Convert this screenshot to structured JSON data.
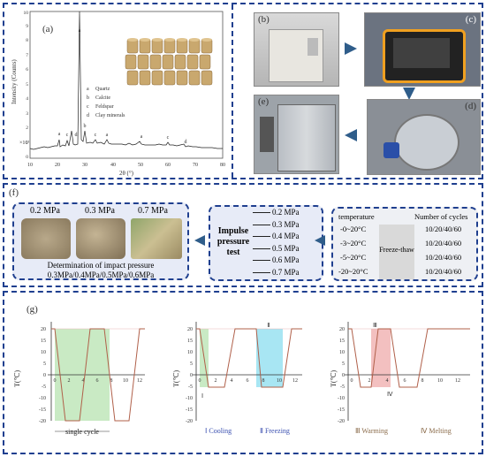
{
  "panel_a": {
    "label": "(a)",
    "y_axis_label": "Intensity (Counts)",
    "x_axis_label": "2θ (°)",
    "y_multiplier": "×10³",
    "y_ticks": [
      "0",
      "1",
      "2",
      "3",
      "4",
      "5",
      "6",
      "7",
      "8",
      "9",
      "10"
    ],
    "x_ticks": [
      "10",
      "20",
      "30",
      "40",
      "50",
      "60",
      "70",
      "80"
    ],
    "legend": [
      {
        "key": "a",
        "name": "Quartz"
      },
      {
        "key": "b",
        "name": "Calcite"
      },
      {
        "key": "c",
        "name": "Feldspar"
      },
      {
        "key": "d",
        "name": "Clay minerals"
      }
    ],
    "peak_labels": [
      "a",
      "a",
      "c",
      "d",
      "b",
      "c",
      "a",
      "c",
      "a",
      "d"
    ]
  },
  "panel_b_label": "(b)",
  "panel_c_label": "(c)",
  "panel_d_label": "(d)",
  "panel_e_label": "(e)",
  "panel_f": {
    "label": "(f)",
    "pressures_shown": [
      "0.2 MPa",
      "0.3 MPa",
      "0.7 MPa"
    ],
    "caption_line1": "Determination of impact pressure",
    "caption_line2": "0.3MPa/0.4MPa/0.5MPa/0.6MPa",
    "test_label_line1": "Impulse",
    "test_label_line2": "pressure",
    "test_label_line3": "test",
    "test_pressures": [
      "0.2 MPa",
      "0.3 MPa",
      "0.4 MPa",
      "0.5 MPa",
      "0.6 MPa",
      "0.7 MPa"
    ],
    "table_header_temp": "temperature",
    "table_header_cycles": "Number of cycles",
    "temps": [
      "-0~20°C",
      "-3~20°C",
      "-5~20°C",
      "-20~20°C"
    ],
    "middle_label": "Freeze-thaw",
    "cycles": [
      "10/20/40/60",
      "10/20/40/60",
      "10/20/40/60",
      "10/20/40/60"
    ]
  },
  "panel_g": {
    "label": "(g)",
    "y_label": "T(℃)",
    "y_ticks": [
      "20",
      "15",
      "10",
      "5",
      "0",
      "-5",
      "-10",
      "-15",
      "-20"
    ],
    "x_ticks": [
      "0",
      "2",
      "4",
      "6",
      "8",
      "10",
      "12"
    ],
    "single_cycle": "single cycle",
    "cooling": "Ⅰ Cooling",
    "freezing": "Ⅱ Freezing",
    "warming": "Ⅲ Warming",
    "melting": "Ⅳ Melting",
    "roman_1": "Ⅰ",
    "roman_2": "Ⅱ",
    "roman_3": "Ⅲ",
    "roman_4": "Ⅳ"
  }
}
